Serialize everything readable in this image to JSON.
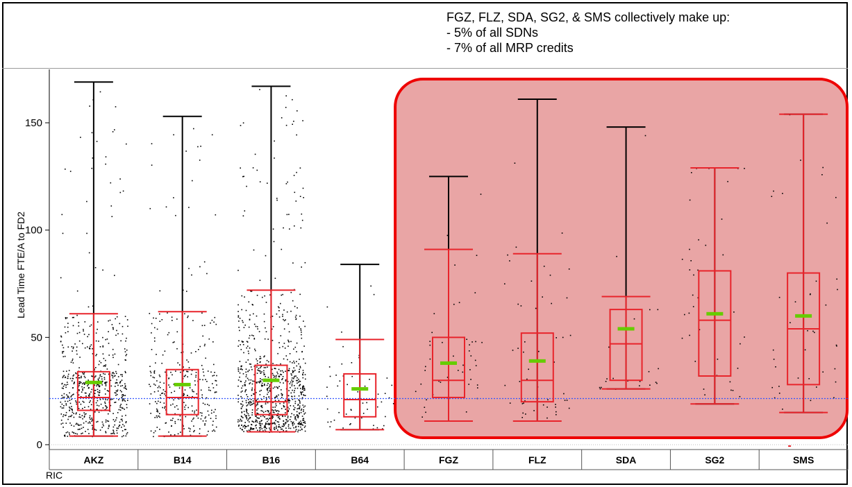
{
  "annotation": {
    "lines": [
      "FGZ, FLZ, SDA, SG2, & SMS collectively make up:",
      "- 5% of all SDNs",
      "- 7% of all MRP credits"
    ]
  },
  "colors": {
    "box": "#e8242b",
    "whisker": "#000000",
    "mean": "#66cc00",
    "reference_line": "#3355ff",
    "highlight_fill": "#e07f7f",
    "highlight_border": "#ee0000",
    "points": "#000000"
  },
  "chart_data": {
    "type": "box",
    "xlabel": "RIC",
    "ylabel": "Lead Time FTE/A to FD2",
    "ylim": [
      -2,
      170
    ],
    "yticks": [
      0,
      50,
      100,
      150
    ],
    "grid": false,
    "reference_line": 21.5,
    "categories": [
      "AKZ",
      "B14",
      "B16",
      "B64",
      "FGZ",
      "FLZ",
      "SDA",
      "SG2",
      "SMS"
    ],
    "highlighted_categories": [
      "FGZ",
      "FLZ",
      "SDA",
      "SG2",
      "SMS"
    ],
    "series": [
      {
        "category": "AKZ",
        "min": 4,
        "q1": 16,
        "median": 22,
        "q3": 34,
        "upper_fence": 61,
        "max": 169,
        "mean": 29,
        "n_points": 620
      },
      {
        "category": "B14",
        "min": 4,
        "q1": 14,
        "median": 22,
        "q3": 35,
        "upper_fence": 62,
        "max": 153,
        "mean": 28,
        "n_points": 320
      },
      {
        "category": "B16",
        "min": 6,
        "q1": 14,
        "median": 20,
        "q3": 37,
        "upper_fence": 72,
        "max": 167,
        "mean": 30,
        "n_points": 900
      },
      {
        "category": "B64",
        "min": 7,
        "q1": 13,
        "median": 21,
        "q3": 33,
        "upper_fence": 49,
        "max": 84,
        "mean": 26,
        "n_points": 55
      },
      {
        "category": "FGZ",
        "min": 11,
        "q1": 22,
        "median": 30,
        "q3": 50,
        "upper_fence": 91,
        "max": 125,
        "mean": 38,
        "n_points": 45
      },
      {
        "category": "FLZ",
        "min": 11,
        "q1": 20,
        "median": 30,
        "q3": 52,
        "upper_fence": 89,
        "max": 161,
        "mean": 39,
        "n_points": 50
      },
      {
        "category": "SDA",
        "min": 26,
        "q1": 30,
        "median": 47,
        "q3": 63,
        "upper_fence": 69,
        "max": 148,
        "mean": 54,
        "n_points": 22
      },
      {
        "category": "SG2",
        "min": 19,
        "q1": 32,
        "median": 58,
        "q3": 81,
        "upper_fence": 129,
        "max": 129,
        "mean": 61,
        "n_points": 38
      },
      {
        "category": "SMS",
        "min": 15,
        "q1": 28,
        "median": 54,
        "q3": 80,
        "upper_fence": 154,
        "max": 154,
        "mean": 60,
        "n_points": 40
      }
    ]
  }
}
